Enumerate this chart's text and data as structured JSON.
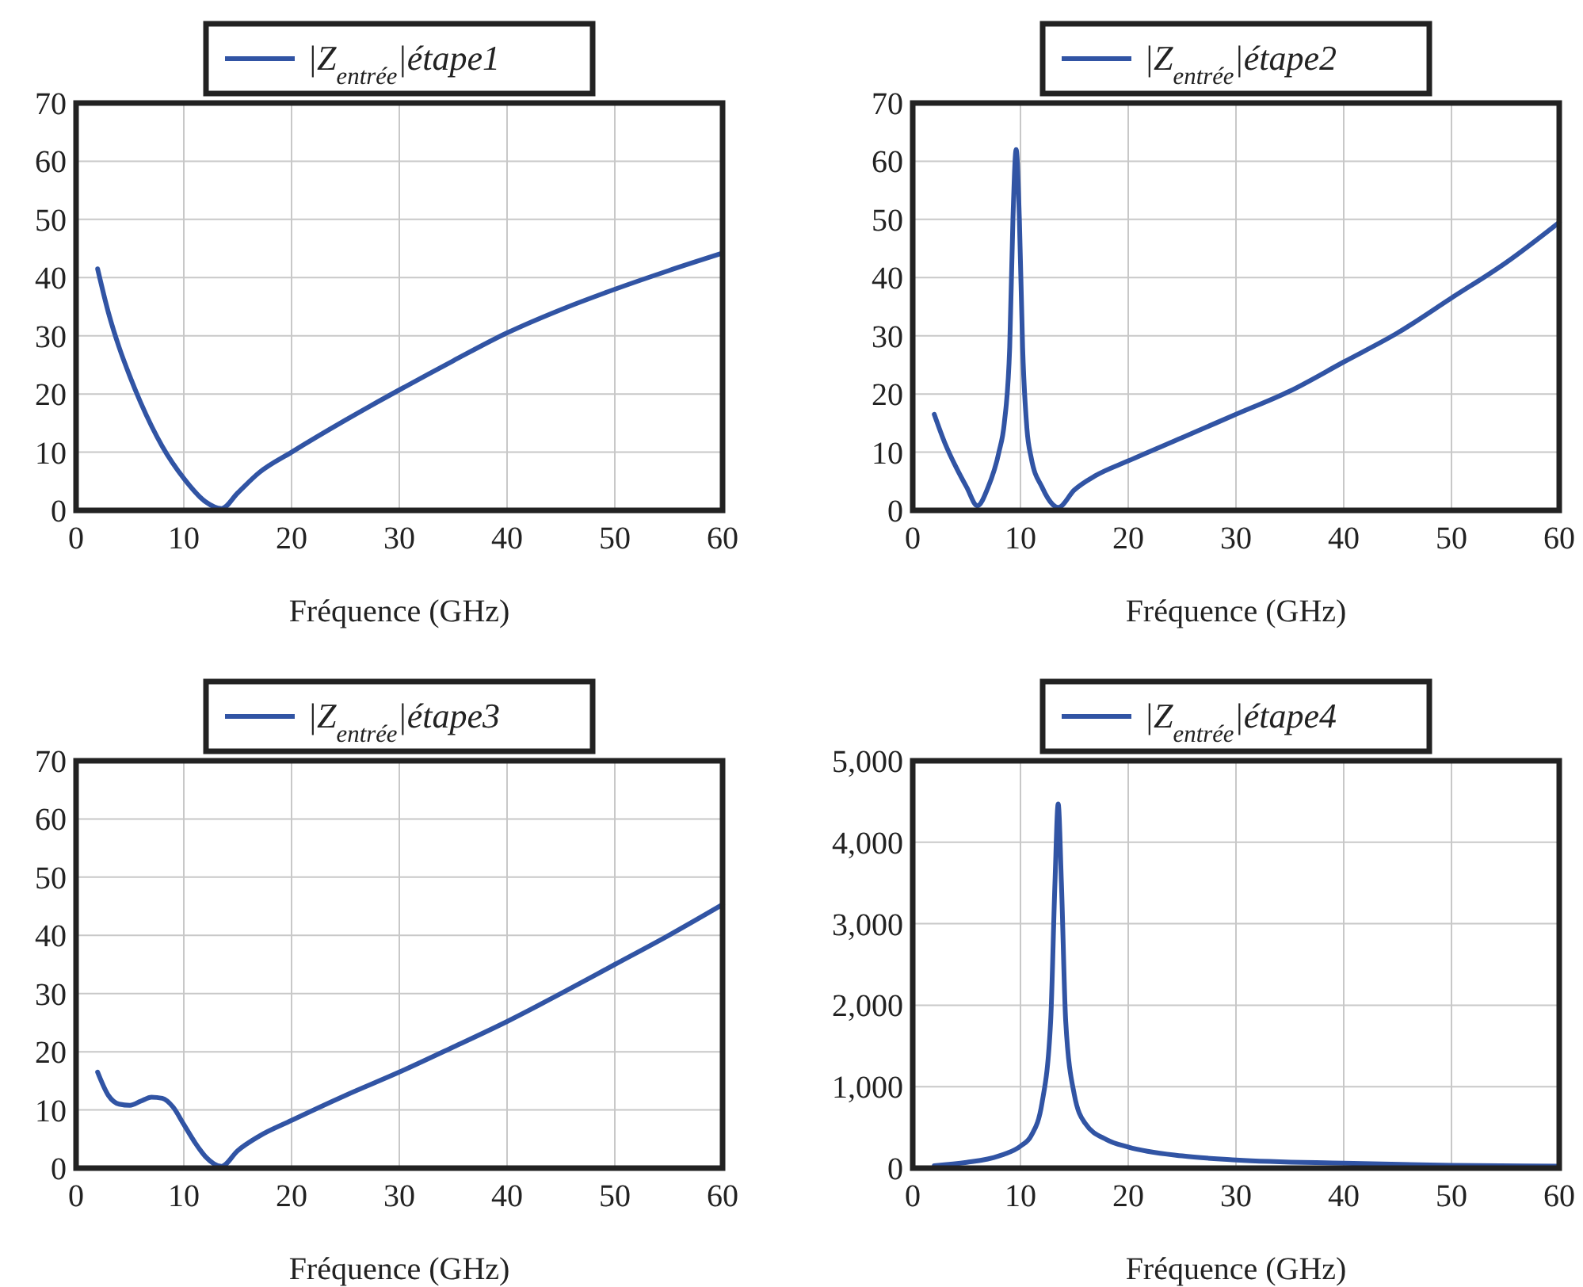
{
  "chart_data": [
    {
      "type": "line",
      "xlabel": "Fréquence (GHz)",
      "xlim": [
        0,
        60
      ],
      "xticks": [
        0,
        10,
        20,
        30,
        40,
        50,
        60
      ],
      "ylim": [
        0,
        70
      ],
      "yticks": [
        0,
        10,
        20,
        30,
        40,
        50,
        60,
        70
      ],
      "grid": true,
      "legend": "top",
      "series": [
        {
          "name": "|Z$_{entrée}$|étape1",
          "color": "#3154a4",
          "x": [
            2,
            3,
            4,
            5,
            6,
            8,
            10,
            12,
            13.5,
            15,
            17,
            20,
            25,
            30,
            35,
            40,
            45,
            50,
            55,
            60
          ],
          "values": [
            41.5,
            34,
            28,
            23,
            18.5,
            11,
            5.5,
            1.5,
            0.3,
            3,
            6.5,
            10,
            15.5,
            20.7,
            25.7,
            30.5,
            34.5,
            38,
            41.2,
            44.2
          ]
        }
      ]
    },
    {
      "type": "line",
      "xlabel": "Fréquence (GHz)",
      "xlim": [
        0,
        60
      ],
      "xticks": [
        0,
        10,
        20,
        30,
        40,
        50,
        60
      ],
      "ylim": [
        0,
        70
      ],
      "yticks": [
        0,
        10,
        20,
        30,
        40,
        50,
        60,
        70
      ],
      "grid": true,
      "legend": "top",
      "series": [
        {
          "name": "|Z$_{entrée}$|étape2",
          "color": "#3154a4",
          "x": [
            2,
            3,
            4,
            5,
            6,
            7,
            8,
            8.5,
            9,
            9.3,
            9.6,
            9.9,
            10.2,
            10.6,
            11,
            12,
            13,
            13.5,
            15,
            17,
            20,
            25,
            30,
            35,
            40,
            45,
            50,
            55,
            60
          ],
          "values": [
            16.5,
            11.5,
            7.5,
            4,
            0.8,
            4,
            10,
            15,
            28,
            50,
            62,
            50,
            28,
            14,
            9,
            4,
            1,
            0.5,
            3.5,
            6,
            8.5,
            12.5,
            16.5,
            20.5,
            25.5,
            30.5,
            36.5,
            42.5,
            49.5
          ]
        }
      ]
    },
    {
      "type": "line",
      "xlabel": "Fréquence (GHz)",
      "xlim": [
        0,
        60
      ],
      "xticks": [
        0,
        10,
        20,
        30,
        40,
        50,
        60
      ],
      "ylim": [
        0,
        70
      ],
      "yticks": [
        0,
        10,
        20,
        30,
        40,
        50,
        60,
        70
      ],
      "grid": true,
      "legend": "top",
      "series": [
        {
          "name": "|Z$_{entrée}$|étape3",
          "color": "#3154a4",
          "x": [
            2,
            3,
            4,
            5,
            6,
            7,
            8,
            9,
            10,
            11,
            12,
            13.5,
            15,
            17,
            20,
            25,
            30,
            35,
            40,
            45,
            50,
            55,
            60
          ],
          "values": [
            16.5,
            12.5,
            11,
            10.8,
            11.5,
            12.2,
            12,
            10.5,
            7.5,
            4.5,
            2,
            0.3,
            3,
            5.5,
            8.2,
            12.5,
            16.5,
            20.8,
            25.2,
            30,
            35,
            40,
            45.3
          ]
        }
      ]
    },
    {
      "type": "line",
      "xlabel": "Fréquence (GHz)",
      "xlim": [
        0,
        60
      ],
      "xticks": [
        0,
        10,
        20,
        30,
        40,
        50,
        60
      ],
      "ylim": [
        0,
        5000
      ],
      "yticks": [
        0,
        {
          "value": 1000,
          "label": "1,000"
        },
        {
          "value": 2000,
          "label": "2,000"
        },
        {
          "value": 3000,
          "label": "3,000"
        },
        {
          "value": 4000,
          "label": "4,000"
        },
        {
          "value": 5000,
          "label": "5,000"
        }
      ],
      "grid": true,
      "legend": "top",
      "series": [
        {
          "name": "|Z$_{entrée}$|étape4",
          "color": "#3154a4",
          "x": [
            2,
            5,
            8,
            10,
            11,
            12,
            12.8,
            13.2,
            13.5,
            13.8,
            14.2,
            15,
            16,
            18,
            20,
            25,
            30,
            40,
            50,
            60
          ],
          "values": [
            30,
            70,
            150,
            270,
            400,
            800,
            1800,
            3500,
            4470,
            3500,
            1800,
            900,
            550,
            350,
            260,
            150,
            100,
            60,
            35,
            25
          ]
        }
      ]
    }
  ]
}
